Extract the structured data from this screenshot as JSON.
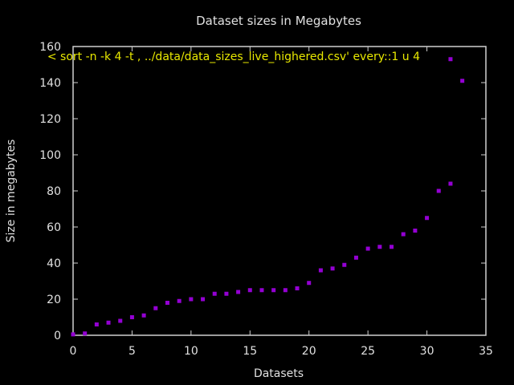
{
  "chart_data": {
    "type": "scatter",
    "title": "Dataset sizes in Megabytes",
    "xlabel": "Datasets",
    "ylabel": "Size in megabytes",
    "xlim": [
      0,
      35
    ],
    "ylim": [
      0,
      160
    ],
    "xticks": [
      0,
      5,
      10,
      15,
      20,
      25,
      30,
      35
    ],
    "yticks": [
      0,
      20,
      40,
      60,
      80,
      100,
      120,
      140,
      160
    ],
    "grid": false,
    "legend_placement": "top-right",
    "series": [
      {
        "name": "< sort -n -k 4 -t , ../data/data_sizes_live_highered.csv' every::1 u 4",
        "color": "#9400d3",
        "x": [
          0,
          1,
          2,
          3,
          4,
          5,
          6,
          7,
          8,
          9,
          10,
          11,
          12,
          13,
          14,
          15,
          16,
          17,
          18,
          19,
          20,
          21,
          22,
          23,
          24,
          25,
          26,
          27,
          28,
          29,
          30,
          31,
          32,
          33
        ],
        "y": [
          0.5,
          1,
          6,
          7,
          8,
          10,
          11,
          15,
          18,
          19,
          20,
          20,
          23,
          23,
          24,
          25,
          25,
          25,
          25,
          26,
          29,
          36,
          37,
          39,
          43,
          48,
          49,
          49,
          56,
          58,
          65,
          80,
          84,
          141
        ]
      },
      {
        "name": "",
        "color": "#9400d3",
        "x": [
          32
        ],
        "y": [
          153
        ]
      }
    ],
    "colors": {
      "background": "#000000",
      "axes": "#d0d0d0",
      "text": "#e0e0e0",
      "legend_text": "#e8e800",
      "points": "#9400d3"
    }
  }
}
